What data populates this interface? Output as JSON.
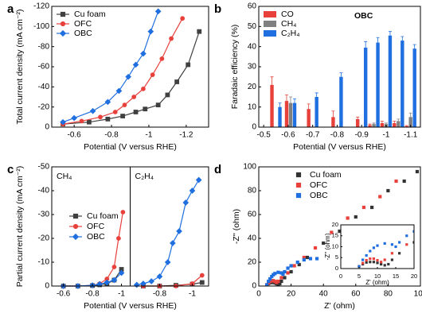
{
  "chart_data": [
    {
      "type": "line",
      "panel_label": "a",
      "xlabel": "Potential (V versus RHE)",
      "ylabel": "Total current density (mA cm⁻²)",
      "xlim": [
        -0.48,
        -1.32
      ],
      "xticks": [
        -0.6,
        -0.8,
        -1.0,
        -1.2
      ],
      "ylim": [
        0,
        -120
      ],
      "yticks": [
        0,
        -20,
        -40,
        -60,
        -80,
        -100,
        -120
      ],
      "series": [
        {
          "name": "Cu foam",
          "color": "#404040",
          "marker": "square",
          "x": [
            -0.54,
            -0.68,
            -0.78,
            -0.86,
            -0.93,
            -0.98,
            -1.05,
            -1.1,
            -1.15,
            -1.21,
            -1.27
          ],
          "values": [
            -3,
            -5,
            -8,
            -11,
            -15,
            -18,
            -22,
            -32,
            -45,
            -62,
            -95
          ]
        },
        {
          "name": "OFC",
          "color": "#e8413c",
          "marker": "circle",
          "x": [
            -0.54,
            -0.64,
            -0.74,
            -0.82,
            -0.87,
            -0.92,
            -0.97,
            -1.02,
            -1.07,
            -1.12,
            -1.18
          ],
          "values": [
            -3,
            -6,
            -10,
            -15,
            -22,
            -30,
            -38,
            -52,
            -68,
            -88,
            -108
          ]
        },
        {
          "name": "OBC",
          "color": "#1f6fe0",
          "marker": "diamond",
          "x": [
            -0.54,
            -0.6,
            -0.7,
            -0.78,
            -0.84,
            -0.89,
            -0.93,
            -0.97,
            -1.01,
            -1.05
          ],
          "values": [
            -5,
            -9,
            -16,
            -25,
            -36,
            -50,
            -62,
            -73,
            -95,
            -115
          ]
        }
      ]
    },
    {
      "type": "bar",
      "panel_label": "b",
      "annotation": "OBC",
      "xlabel": "Potential (V versus RHE)",
      "ylabel": "Faradaic efficiency (%)",
      "x": [
        -0.55,
        -0.61,
        -0.7,
        -0.8,
        -0.9,
        -0.95,
        -1.0,
        -1.05,
        -1.1
      ],
      "xlim": [
        -0.48,
        -1.14
      ],
      "xticks": [
        -0.5,
        -0.6,
        -0.7,
        -0.8,
        -0.9,
        -1.0,
        -1.1
      ],
      "ylim": [
        0,
        60
      ],
      "yticks": [
        0,
        10,
        20,
        30,
        40,
        50,
        60
      ],
      "series": [
        {
          "name": "CO",
          "color": "#e8413c",
          "values": [
            21,
            13,
            9,
            5,
            4,
            1,
            2,
            2,
            0.5
          ],
          "errors": [
            4,
            3,
            2.5,
            3,
            1,
            0.5,
            1,
            1,
            0.3
          ]
        },
        {
          "name": "CH₄",
          "color": "#808080",
          "values": [
            0,
            12,
            0,
            0,
            0,
            1.5,
            1.5,
            3,
            5
          ],
          "errors": [
            0,
            3,
            0,
            0,
            0,
            0.5,
            0.5,
            1,
            2
          ]
        },
        {
          "name": "C₂H₄",
          "color": "#1f6fe0",
          "values": [
            10,
            12,
            15,
            25,
            39.5,
            42,
            45.5,
            43,
            39
          ],
          "errors": [
            2,
            2,
            2,
            2,
            3,
            2.5,
            2,
            2,
            2
          ]
        }
      ]
    },
    {
      "type": "split-line",
      "panel_label": "c",
      "xlabel": "Potential (V versus RHE)",
      "ylabel": "Partial current density (mA cm⁻²)",
      "ylim": [
        0,
        -50
      ],
      "yticks": [
        0,
        -10,
        -20,
        -30,
        -40,
        -50
      ],
      "panels": [
        {
          "label": "CH₄",
          "xlim": [
            -0.52,
            -1.06
          ],
          "xticks": [
            -0.6,
            -0.8,
            -1.0
          ]
        },
        {
          "label": "C₂H₄",
          "xlim": [
            -0.62,
            -1.1
          ],
          "xticks": [
            -0.8,
            -1.0
          ]
        }
      ],
      "series": [
        {
          "name": "Cu foam",
          "color": "#404040",
          "marker": "square",
          "panels": [
            {
              "x": [
                -0.6,
                -0.7,
                -0.8,
                -0.85,
                -0.9,
                -0.95,
                -1.0
              ],
              "values": [
                0,
                0,
                -0.2,
                -0.5,
                -1,
                -2.5,
                -7
              ]
            },
            {
              "x": [
                -0.7,
                -0.8,
                -0.9,
                -1.0,
                -1.06
              ],
              "values": [
                0,
                0,
                -0.3,
                -0.8,
                -1.5
              ]
            }
          ]
        },
        {
          "name": "OFC",
          "color": "#e8413c",
          "marker": "circle",
          "panels": [
            {
              "x": [
                -0.6,
                -0.7,
                -0.8,
                -0.85,
                -0.9,
                -0.95,
                -0.98,
                -1.01
              ],
              "values": [
                0,
                0,
                -0.3,
                -1,
                -3,
                -8,
                -20,
                -31
              ]
            },
            {
              "x": [
                -0.7,
                -0.8,
                -0.9,
                -1.0,
                -1.06
              ],
              "values": [
                0,
                0,
                0,
                -1,
                -4.5
              ]
            }
          ]
        },
        {
          "name": "OBC",
          "color": "#1f6fe0",
          "marker": "diamond",
          "panels": [
            {
              "x": [
                -0.6,
                -0.7,
                -0.8,
                -0.85,
                -0.9,
                -0.95,
                -1.0
              ],
              "values": [
                0,
                0,
                -0.3,
                -0.8,
                -1.5,
                -2.5,
                -5.5
              ]
            },
            {
              "x": [
                -0.66,
                -0.7,
                -0.75,
                -0.8,
                -0.85,
                -0.88,
                -0.92,
                -0.96,
                -1.0,
                -1.04
              ],
              "values": [
                -0.5,
                -1,
                -2,
                -4,
                -10,
                -18,
                -23,
                -35,
                -40,
                -44.5
              ]
            }
          ]
        }
      ]
    },
    {
      "type": "scatter",
      "panel_label": "d",
      "xlabel": "Z' (ohm)",
      "ylabel": "-Z'' (ohm)",
      "xlim": [
        0,
        100
      ],
      "xticks": [
        0,
        20,
        40,
        60,
        80,
        100
      ],
      "ylim": [
        0,
        100
      ],
      "yticks": [
        0,
        20,
        40,
        60,
        80,
        100
      ],
      "inset": {
        "xlim": [
          0,
          20
        ],
        "xticks": [
          0,
          5,
          10,
          15,
          20
        ],
        "ylim": [
          0,
          20
        ],
        "yticks": [
          0,
          5,
          10,
          15,
          20
        ],
        "xlabel": "Z' (ohm)",
        "ylabel": "-Z'' (ohm)"
      },
      "series": [
        {
          "name": "Cu foam",
          "color": "#333333",
          "x": [
            5,
            6,
            7,
            8,
            9,
            10,
            11,
            12,
            13,
            14,
            16,
            20,
            25,
            30,
            40,
            50,
            60,
            70,
            80,
            90,
            98
          ],
          "values": [
            1,
            2,
            2.8,
            3,
            3,
            2.6,
            2,
            1.5,
            2,
            4,
            7,
            12,
            18,
            24,
            36,
            46,
            58,
            66,
            80,
            88,
            96
          ]
        },
        {
          "name": "OFC",
          "color": "#e8413c",
          "x": [
            5,
            6,
            7,
            8,
            9,
            10,
            11,
            12,
            14,
            18,
            22,
            28,
            35,
            45,
            55,
            65,
            75,
            85
          ],
          "values": [
            1,
            2.5,
            3.8,
            4.5,
            4.5,
            3.8,
            3,
            4,
            7,
            11,
            17,
            24,
            32,
            45,
            57,
            66,
            75,
            88
          ]
        },
        {
          "name": "OBC",
          "color": "#1f6fe0",
          "x": [
            5,
            6,
            7,
            8,
            9,
            10,
            12,
            14,
            15,
            16,
            18,
            20,
            24,
            28,
            32,
            36
          ],
          "values": [
            1,
            4,
            6,
            8,
            9.5,
            10.5,
            11.5,
            11,
            10,
            12,
            15,
            17,
            20,
            22,
            23,
            23
          ]
        }
      ]
    }
  ]
}
